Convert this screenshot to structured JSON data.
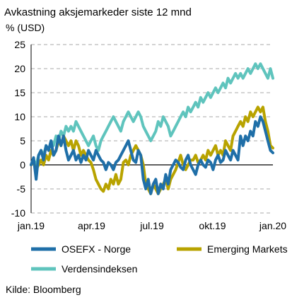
{
  "chart_data": {
    "type": "line",
    "title": "Avkastning aksjemarkeder siste 12 mnd",
    "ylabel": "% (USD)",
    "source": "Kilde: Bloomberg",
    "ylim": [
      -10,
      25
    ],
    "yticks": [
      "-10",
      "-5",
      "0",
      "5",
      "10",
      "15",
      "20",
      "25"
    ],
    "xticks": [
      "jan.19",
      "apr.19",
      "jul.19",
      "okt.19",
      "jan.20"
    ],
    "grid": "horizontal dashed",
    "legend_position": "bottom",
    "series": [
      {
        "name": "OSEFX - Norge",
        "color": "#1f6fa8",
        "values": [
          0,
          1.5,
          -3,
          2,
          3,
          1,
          4,
          3,
          5,
          2,
          3,
          6,
          4,
          6,
          3,
          1,
          2,
          3,
          1,
          2,
          0.5,
          2,
          1,
          3,
          2,
          1,
          3,
          2,
          1,
          0.5,
          -1,
          0.5,
          0,
          -1,
          0.5,
          1,
          2,
          3,
          4,
          5,
          3,
          1,
          0.5,
          3,
          2,
          -3,
          -5,
          -3,
          -6,
          -4,
          -3,
          -6,
          -4,
          -5,
          -2,
          -4,
          -1,
          0,
          1,
          0.5,
          -0.5,
          -1,
          1,
          2,
          0,
          -1,
          -2,
          0,
          1,
          0,
          -0.5,
          1,
          0.5,
          -1,
          1,
          2,
          0.5,
          1,
          3,
          2,
          1,
          3,
          2,
          1,
          6,
          4,
          6,
          5,
          7,
          6,
          9,
          8,
          10,
          9,
          7,
          5,
          3,
          2.5
        ],
        "x": [
          0,
          1,
          2,
          3,
          4,
          5,
          6,
          7,
          8,
          9,
          10,
          11,
          12,
          13,
          14,
          15,
          16,
          17,
          18,
          19,
          20,
          21,
          22,
          23,
          24,
          25,
          26,
          27,
          28,
          29,
          30,
          31,
          32,
          33,
          34,
          35,
          36,
          37,
          38,
          39,
          40,
          41,
          42,
          43,
          44,
          45,
          46,
          47,
          48,
          49,
          50,
          51,
          52,
          53,
          54,
          55,
          56,
          57,
          58,
          59,
          60,
          61,
          62,
          63,
          64,
          65,
          66,
          67,
          68,
          69,
          70,
          71,
          72,
          73,
          74,
          75,
          76,
          77,
          78,
          79,
          80,
          81,
          82,
          83,
          84,
          85,
          86,
          87,
          88,
          89,
          90,
          91,
          92,
          93,
          94,
          95,
          96,
          97
        ]
      },
      {
        "name": "Emerging Markets",
        "color": "#b8a300",
        "values": [
          0,
          0.5,
          -1,
          0,
          1,
          0,
          2,
          1,
          3,
          2,
          3,
          5,
          4,
          6,
          5,
          4,
          5,
          3,
          5,
          4,
          2,
          3,
          2,
          1,
          0.5,
          -1,
          -3,
          -4,
          -5,
          -5.5,
          -4,
          -5,
          -3,
          -4,
          -2,
          -4,
          -3,
          0.5,
          1,
          0,
          2,
          3,
          4,
          3,
          2,
          0,
          -4,
          -5,
          -6,
          -4,
          -5,
          -6,
          -5,
          -4,
          -3,
          -5,
          -3,
          -2,
          -1,
          0.5,
          2,
          0,
          -1,
          0,
          1,
          1,
          2,
          0.5,
          1,
          2,
          1,
          3,
          2,
          3,
          4,
          2,
          3,
          2,
          5,
          4,
          3,
          6,
          7,
          8,
          9,
          8,
          10,
          9,
          11,
          10,
          11,
          12,
          11,
          12,
          9,
          7,
          4,
          3.5
        ],
        "x": [
          0,
          1,
          2,
          3,
          4,
          5,
          6,
          7,
          8,
          9,
          10,
          11,
          12,
          13,
          14,
          15,
          16,
          17,
          18,
          19,
          20,
          21,
          22,
          23,
          24,
          25,
          26,
          27,
          28,
          29,
          30,
          31,
          32,
          33,
          34,
          35,
          36,
          37,
          38,
          39,
          40,
          41,
          42,
          43,
          44,
          45,
          46,
          47,
          48,
          49,
          50,
          51,
          52,
          53,
          54,
          55,
          56,
          57,
          58,
          59,
          60,
          61,
          62,
          63,
          64,
          65,
          66,
          67,
          68,
          69,
          70,
          71,
          72,
          73,
          74,
          75,
          76,
          77,
          78,
          79,
          80,
          81,
          82,
          83,
          84,
          85,
          86,
          87,
          88,
          89,
          90,
          91,
          92,
          93,
          94,
          95,
          96,
          97
        ]
      },
      {
        "name": "Verdensindeksen",
        "color": "#5fc4bd",
        "values": [
          0,
          1,
          0,
          2,
          3,
          2,
          4,
          3,
          5,
          4,
          6,
          5,
          7,
          6,
          8,
          7,
          8,
          7,
          9,
          8,
          7,
          6,
          5,
          4,
          5,
          6,
          4,
          3,
          5,
          6,
          7,
          8,
          9,
          10,
          9,
          8,
          7,
          9,
          10,
          11,
          10,
          9,
          10,
          11,
          10,
          8,
          7,
          6,
          5,
          6,
          7,
          9,
          8,
          10,
          9,
          8,
          6,
          7,
          8,
          9,
          10,
          11,
          10,
          12,
          11,
          12,
          13,
          12,
          14,
          13,
          14,
          15,
          14,
          15,
          16,
          15,
          16,
          17,
          16,
          18,
          17,
          18,
          19,
          18,
          19,
          18,
          19,
          20,
          19,
          20,
          21,
          20,
          21,
          20,
          19,
          18,
          20,
          18
        ],
        "x": [
          0,
          1,
          2,
          3,
          4,
          5,
          6,
          7,
          8,
          9,
          10,
          11,
          12,
          13,
          14,
          15,
          16,
          17,
          18,
          19,
          20,
          21,
          22,
          23,
          24,
          25,
          26,
          27,
          28,
          29,
          30,
          31,
          32,
          33,
          34,
          35,
          36,
          37,
          38,
          39,
          40,
          41,
          42,
          43,
          44,
          45,
          46,
          47,
          48,
          49,
          50,
          51,
          52,
          53,
          54,
          55,
          56,
          57,
          58,
          59,
          60,
          61,
          62,
          63,
          64,
          65,
          66,
          67,
          68,
          69,
          70,
          71,
          72,
          73,
          74,
          75,
          76,
          77,
          78,
          79,
          80,
          81,
          82,
          83,
          84,
          85,
          86,
          87,
          88,
          89,
          90,
          91,
          92,
          93,
          94,
          95,
          96,
          97
        ]
      }
    ]
  }
}
